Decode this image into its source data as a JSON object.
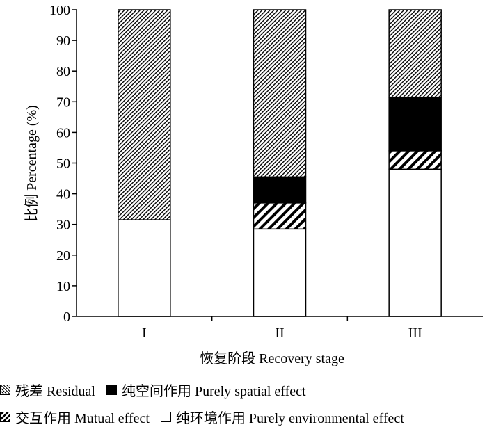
{
  "chart_data": {
    "type": "bar",
    "stacked": true,
    "categories": [
      "I",
      "II",
      "III"
    ],
    "series": [
      {
        "name": "纯环境作用 Purely environmental effect",
        "key": "env",
        "values": [
          31.5,
          28.5,
          48
        ]
      },
      {
        "name": "交互作用 Mutual effect",
        "key": "mutual",
        "values": [
          0,
          8.5,
          6
        ]
      },
      {
        "name": "纯空间作用 Purely spatial effect",
        "key": "spatial",
        "values": [
          0,
          8.5,
          17.5
        ]
      },
      {
        "name": "残差 Residual",
        "key": "residual",
        "values": [
          68.5,
          54.5,
          28.5
        ]
      }
    ],
    "xlabel": "恢复阶段 Recovery stage",
    "ylabel": "比例 Percentage (%)",
    "ylim": [
      0,
      100
    ],
    "yticks": [
      0,
      10,
      20,
      30,
      40,
      50,
      60,
      70,
      80,
      90,
      100
    ]
  },
  "legend": {
    "residual": "残差 Residual",
    "spatial": "纯空间作用 Purely spatial effect",
    "mutual": "交互作用 Mutual effect",
    "env": "纯环境作用 Purely environmental effect"
  }
}
